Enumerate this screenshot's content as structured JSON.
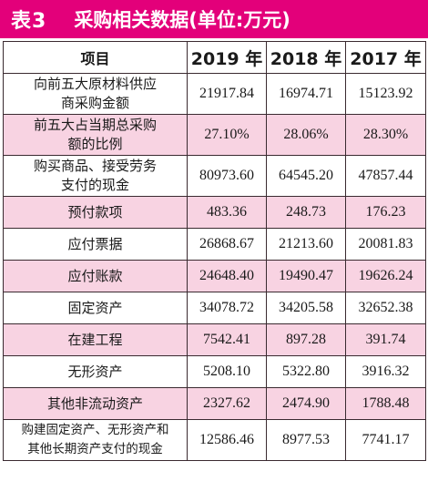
{
  "title": {
    "label": "表3",
    "text": "采购相关数据(单位:万元)"
  },
  "colors": {
    "title_bg": "#e3007a",
    "row_pink": "#f8d3e2",
    "row_white": "#ffffff"
  },
  "table": {
    "headers": [
      "项目",
      "2019 年",
      "2018 年",
      "2017 年"
    ],
    "rows": [
      {
        "label_lines": [
          "向前五大原材料供应",
          "商采购金额"
        ],
        "values": [
          "21917.84",
          "16974.71",
          "15123.92"
        ]
      },
      {
        "label_lines": [
          "前五大占当期总采购",
          "额的比例"
        ],
        "values": [
          "27.10%",
          "28.06%",
          "28.30%"
        ]
      },
      {
        "label_lines": [
          "购买商品、接受劳务",
          "支付的现金"
        ],
        "values": [
          "80973.60",
          "64545.20",
          "47857.44"
        ]
      },
      {
        "label_lines": [
          "预付款项"
        ],
        "values": [
          "483.36",
          "248.73",
          "176.23"
        ]
      },
      {
        "label_lines": [
          "应付票据"
        ],
        "values": [
          "26868.67",
          "21213.60",
          "20081.83"
        ]
      },
      {
        "label_lines": [
          "应付账款"
        ],
        "values": [
          "24648.40",
          "19490.47",
          "19626.24"
        ]
      },
      {
        "label_lines": [
          "固定资产"
        ],
        "values": [
          "34078.72",
          "34205.58",
          "32652.38"
        ]
      },
      {
        "label_lines": [
          "在建工程"
        ],
        "values": [
          "7542.41",
          "897.28",
          "391.74"
        ]
      },
      {
        "label_lines": [
          "无形资产"
        ],
        "values": [
          "5208.10",
          "5322.80",
          "3916.32"
        ]
      },
      {
        "label_lines": [
          "其他非流动资产"
        ],
        "values": [
          "2327.62",
          "2474.90",
          "1788.48"
        ]
      },
      {
        "label_lines": [
          "购建固定资产、无形资产和",
          "其他长期资产支付的现金"
        ],
        "values": [
          "12586.46",
          "8977.53",
          "7741.17"
        ]
      }
    ]
  }
}
